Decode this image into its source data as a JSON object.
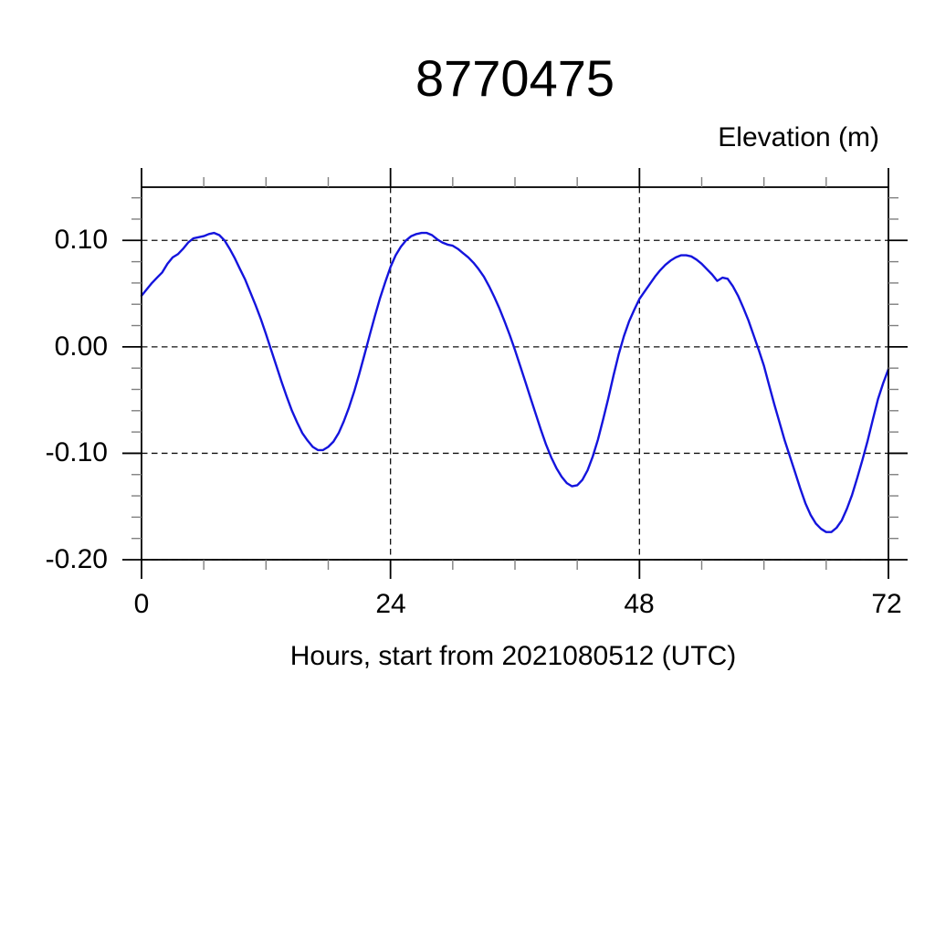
{
  "chart_data": {
    "type": "line",
    "title": "8770475",
    "ylabel": "Elevation (m)",
    "xlabel": "Hours, start from 2021080512 (UTC)",
    "xlim": [
      0,
      72
    ],
    "ylim": [
      -0.2,
      0.15
    ],
    "x_ticks": [
      0,
      24,
      48,
      72
    ],
    "x_tick_labels": [
      "0",
      "24",
      "48",
      "72"
    ],
    "x_minor_ticks": [
      6,
      12,
      18,
      30,
      36,
      42,
      54,
      60,
      66
    ],
    "x_gridlines": [
      24,
      48
    ],
    "y_ticks": [
      0.1,
      0.0,
      -0.1,
      -0.2
    ],
    "y_tick_labels": [
      "0.10",
      "0.00",
      "-0.10",
      "-0.20"
    ],
    "y_minor_ticks": [
      0.14,
      0.12,
      0.08,
      0.06,
      0.04,
      0.02,
      -0.02,
      -0.04,
      -0.06,
      -0.08,
      -0.12,
      -0.14,
      -0.16,
      -0.18
    ],
    "y_gridlines": [
      0.1,
      0.0,
      -0.1,
      -0.2
    ],
    "grid_style": "dashed",
    "legend": "none",
    "colors": {
      "line": "#1414dd",
      "axis": "#000000",
      "grid": "#111111",
      "minor_tick": "#808080",
      "text": "#000000",
      "background": "#ffffff"
    },
    "series": [
      {
        "name": "elevation",
        "units": "m",
        "points": [
          [
            0,
            0.048
          ],
          [
            0.5,
            0.054
          ],
          [
            1,
            0.06
          ],
          [
            1.5,
            0.065
          ],
          [
            2,
            0.07
          ],
          [
            2.5,
            0.078
          ],
          [
            3,
            0.084
          ],
          [
            3.5,
            0.087
          ],
          [
            4,
            0.092
          ],
          [
            4.5,
            0.098
          ],
          [
            5,
            0.102
          ],
          [
            5.5,
            0.103
          ],
          [
            6,
            0.104
          ],
          [
            6.5,
            0.106
          ],
          [
            7,
            0.107
          ],
          [
            7.5,
            0.105
          ],
          [
            8,
            0.1
          ],
          [
            8.5,
            0.092
          ],
          [
            9,
            0.083
          ],
          [
            9.5,
            0.073
          ],
          [
            10,
            0.063
          ],
          [
            10.5,
            0.051
          ],
          [
            11,
            0.039
          ],
          [
            11.5,
            0.026
          ],
          [
            12,
            0.012
          ],
          [
            12.5,
            -0.003
          ],
          [
            13,
            -0.018
          ],
          [
            13.5,
            -0.033
          ],
          [
            14,
            -0.047
          ],
          [
            14.5,
            -0.06
          ],
          [
            15,
            -0.071
          ],
          [
            15.5,
            -0.081
          ],
          [
            16,
            -0.088
          ],
          [
            16.5,
            -0.094
          ],
          [
            17,
            -0.097
          ],
          [
            17.5,
            -0.097
          ],
          [
            18,
            -0.094
          ],
          [
            18.5,
            -0.089
          ],
          [
            19,
            -0.081
          ],
          [
            19.5,
            -0.07
          ],
          [
            20,
            -0.057
          ],
          [
            20.5,
            -0.042
          ],
          [
            21,
            -0.025
          ],
          [
            21.5,
            -0.007
          ],
          [
            22,
            0.011
          ],
          [
            22.5,
            0.029
          ],
          [
            23,
            0.046
          ],
          [
            23.5,
            0.061
          ],
          [
            24,
            0.075
          ],
          [
            24.5,
            0.086
          ],
          [
            25,
            0.094
          ],
          [
            25.5,
            0.1
          ],
          [
            26,
            0.104
          ],
          [
            26.5,
            0.106
          ],
          [
            27,
            0.107
          ],
          [
            27.5,
            0.107
          ],
          [
            28,
            0.105
          ],
          [
            28.5,
            0.101
          ],
          [
            29,
            0.098
          ],
          [
            29.5,
            0.096
          ],
          [
            30,
            0.095
          ],
          [
            30.5,
            0.092
          ],
          [
            31,
            0.088
          ],
          [
            31.5,
            0.084
          ],
          [
            32,
            0.079
          ],
          [
            32.5,
            0.073
          ],
          [
            33,
            0.066
          ],
          [
            33.5,
            0.057
          ],
          [
            34,
            0.047
          ],
          [
            34.5,
            0.036
          ],
          [
            35,
            0.024
          ],
          [
            35.5,
            0.011
          ],
          [
            36,
            -0.003
          ],
          [
            36.5,
            -0.018
          ],
          [
            37,
            -0.033
          ],
          [
            37.5,
            -0.048
          ],
          [
            38,
            -0.063
          ],
          [
            38.5,
            -0.078
          ],
          [
            39,
            -0.092
          ],
          [
            39.5,
            -0.104
          ],
          [
            40,
            -0.114
          ],
          [
            40.5,
            -0.122
          ],
          [
            41,
            -0.128
          ],
          [
            41.5,
            -0.131
          ],
          [
            42,
            -0.13
          ],
          [
            42.5,
            -0.125
          ],
          [
            43,
            -0.116
          ],
          [
            43.5,
            -0.103
          ],
          [
            44,
            -0.087
          ],
          [
            44.5,
            -0.068
          ],
          [
            45,
            -0.048
          ],
          [
            45.5,
            -0.027
          ],
          [
            46,
            -0.007
          ],
          [
            46.5,
            0.01
          ],
          [
            47,
            0.024
          ],
          [
            47.5,
            0.035
          ],
          [
            48,
            0.045
          ],
          [
            48.5,
            0.052
          ],
          [
            49,
            0.059
          ],
          [
            49.5,
            0.066
          ],
          [
            50,
            0.072
          ],
          [
            50.5,
            0.077
          ],
          [
            51,
            0.081
          ],
          [
            51.5,
            0.084
          ],
          [
            52,
            0.086
          ],
          [
            52.5,
            0.086
          ],
          [
            53,
            0.085
          ],
          [
            53.5,
            0.082
          ],
          [
            54,
            0.078
          ],
          [
            54.5,
            0.073
          ],
          [
            55,
            0.068
          ],
          [
            55.5,
            0.062
          ],
          [
            56,
            0.065
          ],
          [
            56.5,
            0.064
          ],
          [
            57,
            0.057
          ],
          [
            57.5,
            0.048
          ],
          [
            58,
            0.037
          ],
          [
            58.5,
            0.025
          ],
          [
            59,
            0.011
          ],
          [
            59.5,
            -0.003
          ],
          [
            60,
            -0.018
          ],
          [
            60.5,
            -0.036
          ],
          [
            61,
            -0.054
          ],
          [
            61.5,
            -0.071
          ],
          [
            62,
            -0.088
          ],
          [
            62.5,
            -0.103
          ],
          [
            63,
            -0.118
          ],
          [
            63.5,
            -0.133
          ],
          [
            64,
            -0.147
          ],
          [
            64.5,
            -0.158
          ],
          [
            65,
            -0.166
          ],
          [
            65.5,
            -0.171
          ],
          [
            66,
            -0.174
          ],
          [
            66.5,
            -0.174
          ],
          [
            67,
            -0.17
          ],
          [
            67.5,
            -0.163
          ],
          [
            68,
            -0.152
          ],
          [
            68.5,
            -0.139
          ],
          [
            69,
            -0.123
          ],
          [
            69.5,
            -0.106
          ],
          [
            70,
            -0.088
          ],
          [
            70.5,
            -0.068
          ],
          [
            71,
            -0.049
          ],
          [
            71.5,
            -0.034
          ],
          [
            72,
            -0.021
          ]
        ]
      }
    ]
  }
}
